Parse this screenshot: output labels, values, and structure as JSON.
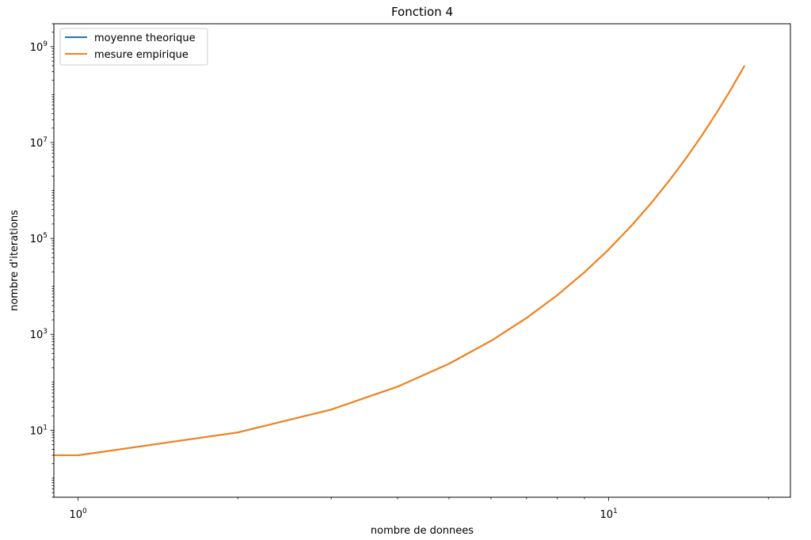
{
  "colors": {
    "series_1": "#1f77b4",
    "series_2": "#ff7f0e",
    "axes": "#000000",
    "legend_border": "#cccccc"
  },
  "chart_data": {
    "type": "line",
    "title": "Fonction 4",
    "xlabel": "nombre de donnees",
    "ylabel": "nombre d'iterations",
    "xscale": "log",
    "yscale": "log",
    "xlim": [
      0.9,
      22
    ],
    "ylim": [
      0.4,
      3000000000
    ],
    "grid": false,
    "legend_position": "top-left",
    "x": [
      0.9,
      1,
      2,
      3,
      4,
      5,
      6,
      7,
      8,
      9,
      10,
      11,
      12,
      13,
      14,
      15,
      16,
      17,
      18
    ],
    "series": [
      {
        "name": "moyenne theorique",
        "color": "#1f77b4",
        "values": [
          3,
          3,
          9,
          27,
          81,
          243,
          729,
          2187,
          6561,
          19683,
          59049,
          177147,
          531441,
          1594323,
          4782969,
          14348907,
          43046721,
          129140163,
          387420489
        ]
      },
      {
        "name": "mesure empirique",
        "color": "#ff7f0e",
        "values": [
          3,
          3,
          9,
          27,
          81,
          243,
          729,
          2187,
          6561,
          19683,
          59049,
          177147,
          531441,
          1594323,
          4782969,
          14348907,
          43046721,
          129140163,
          387420489
        ]
      }
    ],
    "x_ticks": [
      {
        "base": "10",
        "exp": "0",
        "value": 1
      },
      {
        "base": "10",
        "exp": "1",
        "value": 10
      }
    ],
    "y_ticks": [
      {
        "base": "10",
        "exp": "1",
        "value": 10
      },
      {
        "base": "10",
        "exp": "3",
        "value": 1000
      },
      {
        "base": "10",
        "exp": "5",
        "value": 100000
      },
      {
        "base": "10",
        "exp": "7",
        "value": 10000000
      },
      {
        "base": "10",
        "exp": "9",
        "value": 1000000000
      }
    ]
  }
}
